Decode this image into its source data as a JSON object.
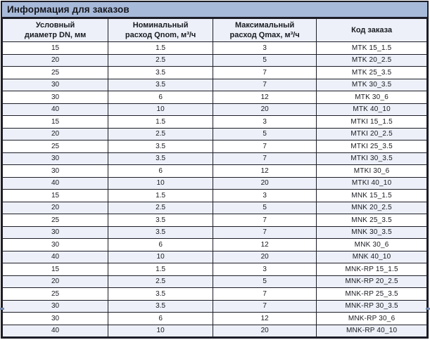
{
  "colors": {
    "title_bg": "#a8bad9",
    "header_bg": "#edf0f8",
    "stripe_bg": "#edf0f8",
    "row_bg": "#ffffff",
    "border": "#1c1d27",
    "text": "#191a21",
    "page_tick": "#7489ad"
  },
  "table": {
    "title": "Информация для заказов",
    "columns": [
      {
        "id": "dn",
        "label": "Условный\nдиаметр DN, мм"
      },
      {
        "id": "qnom",
        "label": "Номинальный\nрасход Qnom, м³/ч"
      },
      {
        "id": "qmax",
        "label": "Максимальный\nрасход Qmax, м³/ч"
      },
      {
        "id": "code",
        "label": "Код заказа"
      }
    ],
    "rows": [
      [
        "15",
        "1.5",
        "3",
        "MTK 15_1.5"
      ],
      [
        "20",
        "2.5",
        "5",
        "MTK 20_2.5"
      ],
      [
        "25",
        "3.5",
        "7",
        "MTK 25_3.5"
      ],
      [
        "30",
        "3.5",
        "7",
        "MTK 30_3.5"
      ],
      [
        "30",
        "6",
        "12",
        "MTK 30_6"
      ],
      [
        "40",
        "10",
        "20",
        "MTK 40_10"
      ],
      [
        "15",
        "1.5",
        "3",
        "MTKI 15_1.5"
      ],
      [
        "20",
        "2.5",
        "5",
        "MTKI 20_2.5"
      ],
      [
        "25",
        "3.5",
        "7",
        "MTKI 25_3.5"
      ],
      [
        "30",
        "3.5",
        "7",
        "MTKI 30_3.5"
      ],
      [
        "30",
        "6",
        "12",
        "MTKI 30_6"
      ],
      [
        "40",
        "10",
        "20",
        "MTKI 40_10"
      ],
      [
        "15",
        "1.5",
        "3",
        "MNK 15_1.5"
      ],
      [
        "20",
        "2.5",
        "5",
        "MNK 20_2.5"
      ],
      [
        "25",
        "3.5",
        "7",
        "MNK 25_3.5"
      ],
      [
        "30",
        "3.5",
        "7",
        "MNK 30_3.5"
      ],
      [
        "30",
        "6",
        "12",
        "MNK 30_6"
      ],
      [
        "40",
        "10",
        "20",
        "MNK 40_10"
      ],
      [
        "15",
        "1.5",
        "3",
        "MNK-RP 15_1.5"
      ],
      [
        "20",
        "2.5",
        "5",
        "MNK-RP 20_2.5"
      ],
      [
        "25",
        "3.5",
        "7",
        "MNK-RP 25_3.5"
      ],
      [
        "30",
        "3.5",
        "7",
        "MNK-RP 30_3.5"
      ],
      [
        "30",
        "6",
        "12",
        "MNK-RP 30_6"
      ],
      [
        "40",
        "10",
        "20",
        "MNK-RP 40_10"
      ]
    ]
  }
}
